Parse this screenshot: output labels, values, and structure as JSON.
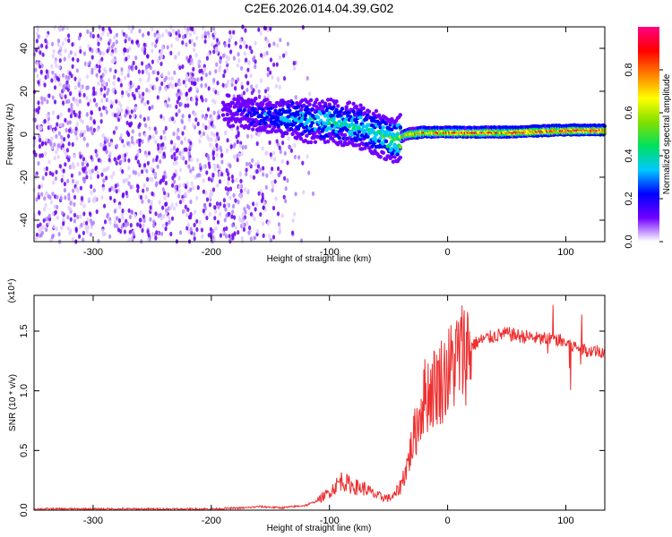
{
  "title": "C2E6.2026.014.04.39.G02",
  "chart_data": [
    {
      "type": "heatmap",
      "xlabel": "Height of straight line (km)",
      "ylabel": "Frequency (Hz)",
      "xlim": [
        -350,
        133
      ],
      "ylim": [
        -50,
        50
      ],
      "x_ticks": [
        -300,
        -200,
        -100,
        0,
        100
      ],
      "y_ticks": [
        -40,
        -20,
        0,
        20,
        40
      ],
      "colorbar": {
        "label": "Normalized spectral amplitude",
        "range": [
          0,
          1
        ],
        "ticks": [
          "0.0",
          "0.2",
          "0.4",
          "0.6",
          "0.8"
        ],
        "colors": [
          "#ffffff",
          "#7000ff",
          "#0000ff",
          "#00c8ff",
          "#00e060",
          "#80e000",
          "#ffff00",
          "#ff8000",
          "#ff0000",
          "#ff0080"
        ]
      },
      "noise_region_x": [
        -350,
        -150
      ],
      "signal_track": {
        "x": [
          -190,
          -160,
          -130,
          -100,
          -70,
          -45,
          -35,
          -20,
          0,
          50,
          100,
          133
        ],
        "frequency": [
          11,
          9,
          7,
          6,
          3,
          -3,
          0,
          1,
          1,
          1,
          2,
          2
        ],
        "peak_amplitude": [
          0.15,
          0.25,
          0.35,
          0.4,
          0.4,
          0.55,
          0.8,
          0.85,
          0.85,
          0.9,
          0.95,
          0.95
        ]
      }
    },
    {
      "type": "line",
      "xlabel": "Height of straight line (km)",
      "ylabel": "SNR (10 * v/v)",
      "y_multiplier": "(x10⁴)",
      "xlim": [
        -350,
        133
      ],
      "ylim": [
        0,
        1.8
      ],
      "x_ticks": [
        -300,
        -200,
        -100,
        0,
        100
      ],
      "y_ticks": [
        "0.0",
        "0.5",
        "1.0",
        "1.5"
      ],
      "series": [
        {
          "color": "#ee3030",
          "x": [
            -350,
            -300,
            -250,
            -200,
            -170,
            -160,
            -140,
            -120,
            -110,
            -100,
            -90,
            -80,
            -70,
            -60,
            -50,
            -45,
            -40,
            -35,
            -30,
            -25,
            -20,
            -15,
            -10,
            -5,
            0,
            10,
            20,
            30,
            40,
            50,
            60,
            70,
            80,
            90,
            100,
            110,
            120,
            133
          ],
          "y": [
            0.01,
            0.01,
            0.01,
            0.01,
            0.02,
            0.03,
            0.02,
            0.04,
            0.08,
            0.15,
            0.25,
            0.2,
            0.18,
            0.12,
            0.1,
            0.12,
            0.2,
            0.35,
            0.55,
            0.75,
            0.95,
            1.0,
            1.05,
            1.1,
            1.15,
            1.3,
            1.38,
            1.43,
            1.46,
            1.48,
            1.46,
            1.45,
            1.43,
            1.44,
            1.4,
            1.36,
            1.34,
            1.33
          ]
        }
      ]
    }
  ]
}
